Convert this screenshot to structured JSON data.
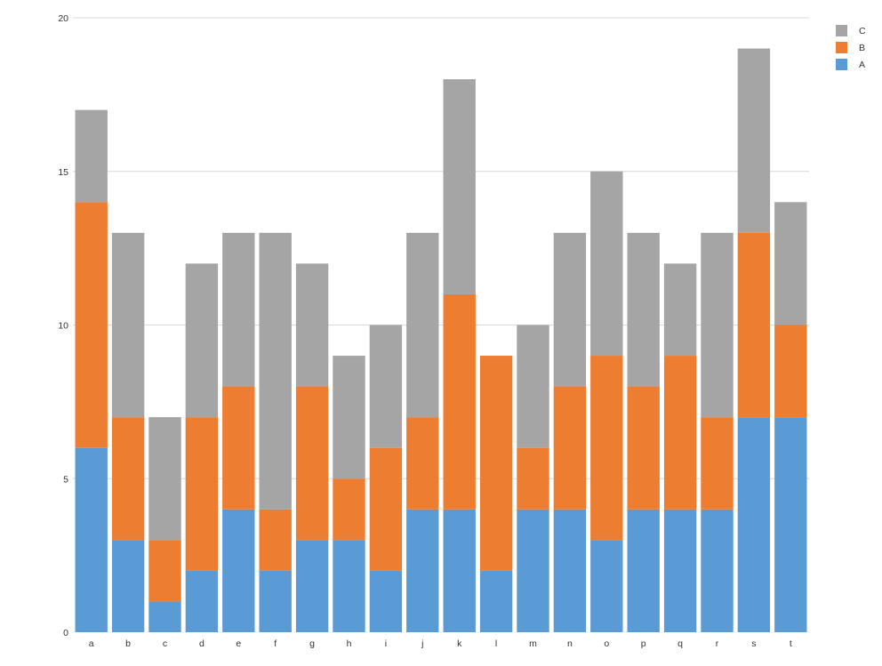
{
  "chart_data": {
    "type": "bar",
    "stacked": true,
    "categories": [
      "a",
      "b",
      "c",
      "d",
      "e",
      "f",
      "g",
      "h",
      "i",
      "j",
      "k",
      "l",
      "m",
      "n",
      "o",
      "p",
      "q",
      "r",
      "s",
      "t"
    ],
    "series": [
      {
        "name": "A",
        "color": "#5b9bd5",
        "values": [
          6,
          3,
          1,
          2,
          4,
          2,
          3,
          3,
          2,
          4,
          4,
          2,
          4,
          4,
          3,
          4,
          4,
          4,
          7,
          7
        ]
      },
      {
        "name": "B",
        "color": "#ed7d31",
        "values": [
          8,
          4,
          2,
          5,
          4,
          2,
          5,
          2,
          4,
          3,
          7,
          7,
          2,
          4,
          6,
          4,
          5,
          3,
          6,
          3
        ]
      },
      {
        "name": "C",
        "color": "#a5a5a5",
        "values": [
          3,
          6,
          4,
          5,
          5,
          9,
          4,
          4,
          4,
          6,
          7,
          0,
          4,
          5,
          6,
          5,
          3,
          6,
          6,
          4
        ]
      }
    ],
    "ylim": [
      0,
      20
    ],
    "yticks": [
      0,
      5,
      10,
      15,
      20
    ],
    "grid": true,
    "legend": {
      "position": "top-right",
      "order": [
        "C",
        "B",
        "A"
      ]
    }
  }
}
